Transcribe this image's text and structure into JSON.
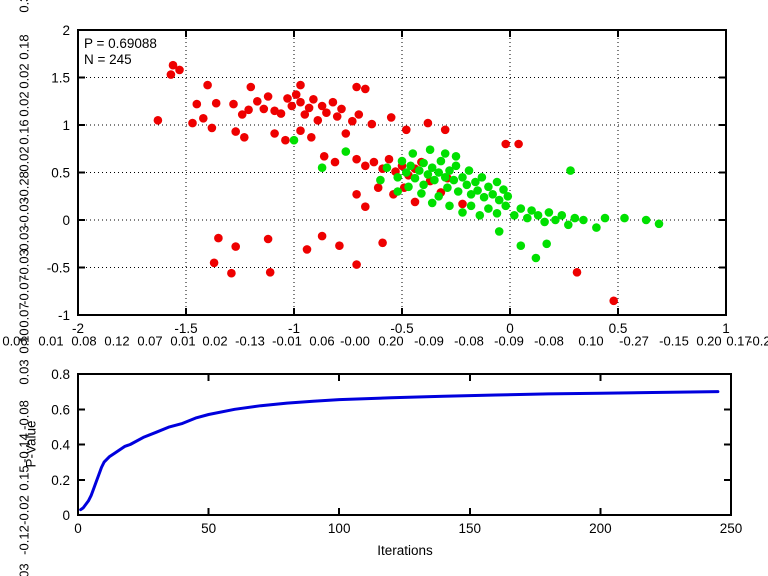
{
  "annotation": {
    "p": "P = 0.69088",
    "n": "N = 245"
  },
  "colors": {
    "red": "#ee0000",
    "green": "#00e000",
    "blue": "#0000dd",
    "axis": "#000000"
  },
  "edge_numbers": {
    "left": [
      "0.30",
      "0.18",
      "0.02",
      "0.02",
      "0.16",
      "0.02",
      "-0.28",
      "-0.03",
      "0.03",
      "-0.03",
      "-0.07",
      "0.07",
      "0.10",
      "0.03",
      "-0.08",
      "-0.14",
      "0.15",
      "-0.02",
      "-0.12",
      "0.03"
    ],
    "bottom": [
      "0.06",
      "0.01",
      "0.08",
      "0.12",
      "0.07",
      "0.01",
      "0.02",
      "-0.13",
      "-0.01",
      "0.06",
      "-0.00",
      "0.20",
      "-0.09",
      "-0.08",
      "-0.09",
      "-0.08",
      "0.10",
      "-0.27",
      "-0.15",
      "0.20",
      "0.17",
      "-0.20"
    ]
  },
  "chart_data": [
    {
      "type": "scatter",
      "name": "scatter-plot",
      "title": "",
      "xlabel": "",
      "ylabel": "",
      "xlim": [
        -2,
        1
      ],
      "ylim": [
        -1,
        2
      ],
      "xtick_labels": [
        "-2",
        "-1.5",
        "-1",
        "-0.5",
        "0",
        "0.5",
        "1"
      ],
      "ytick_labels": [
        "-1",
        "-0.5",
        "0",
        "0.5",
        "1",
        "1.5",
        "2"
      ],
      "grid": true,
      "legend": "none",
      "annotations": [
        "P = 0.69088",
        "N = 245"
      ],
      "series": [
        {
          "name": "red-class",
          "color": "#ee0000",
          "points": [
            [
              -1.56,
              1.63
            ],
            [
              -1.53,
              1.58
            ],
            [
              -1.57,
              1.53
            ],
            [
              -1.63,
              1.05
            ],
            [
              -1.4,
              1.42
            ],
            [
              -1.2,
              1.4
            ],
            [
              -0.97,
              1.42
            ],
            [
              -0.71,
              1.4
            ],
            [
              -0.67,
              1.38
            ],
            [
              -1.45,
              1.22
            ],
            [
              -1.36,
              1.23
            ],
            [
              -1.42,
              1.07
            ],
            [
              -1.47,
              1.02
            ],
            [
              -1.38,
              0.97
            ],
            [
              -1.28,
              1.22
            ],
            [
              -1.24,
              1.11
            ],
            [
              -1.21,
              1.16
            ],
            [
              -1.17,
              1.25
            ],
            [
              -1.14,
              1.17
            ],
            [
              -1.12,
              1.3
            ],
            [
              -1.09,
              1.15
            ],
            [
              -1.06,
              1.12
            ],
            [
              -1.03,
              1.28
            ],
            [
              -1.01,
              1.2
            ],
            [
              -0.99,
              1.32
            ],
            [
              -0.97,
              1.24
            ],
            [
              -0.95,
              1.11
            ],
            [
              -0.93,
              1.18
            ],
            [
              -0.91,
              1.27
            ],
            [
              -0.89,
              1.05
            ],
            [
              -0.87,
              1.2
            ],
            [
              -0.85,
              1.13
            ],
            [
              -0.82,
              1.24
            ],
            [
              -0.8,
              1.09
            ],
            [
              -0.78,
              1.17
            ],
            [
              -0.73,
              1.04
            ],
            [
              -0.7,
              1.11
            ],
            [
              -0.64,
              1.01
            ],
            [
              -0.55,
              1.08
            ],
            [
              -0.48,
              0.95
            ],
            [
              -0.38,
              1.02
            ],
            [
              -0.3,
              0.95
            ],
            [
              -1.27,
              0.93
            ],
            [
              -1.23,
              0.87
            ],
            [
              -1.09,
              0.91
            ],
            [
              -1.04,
              0.84
            ],
            [
              -0.97,
              0.94
            ],
            [
              -0.92,
              0.87
            ],
            [
              -0.76,
              0.91
            ],
            [
              -0.86,
              0.67
            ],
            [
              -0.81,
              0.61
            ],
            [
              -0.71,
              0.64
            ],
            [
              -0.67,
              0.57
            ],
            [
              -0.63,
              0.61
            ],
            [
              -0.59,
              0.54
            ],
            [
              -0.56,
              0.64
            ],
            [
              -0.53,
              0.51
            ],
            [
              -0.5,
              0.57
            ],
            [
              -0.47,
              0.47
            ],
            [
              -0.44,
              0.54
            ],
            [
              -0.41,
              0.61
            ],
            [
              -0.61,
              0.34
            ],
            [
              -0.54,
              0.27
            ],
            [
              -0.49,
              0.34
            ],
            [
              -0.44,
              0.19
            ],
            [
              -0.37,
              0.41
            ],
            [
              -0.32,
              0.29
            ],
            [
              -0.29,
              0.44
            ],
            [
              -0.67,
              0.14
            ],
            [
              -0.71,
              0.27
            ],
            [
              -0.22,
              0.17
            ],
            [
              -1.35,
              -0.19
            ],
            [
              -1.37,
              -0.45
            ],
            [
              -1.27,
              -0.28
            ],
            [
              -1.29,
              -0.56
            ],
            [
              -1.12,
              -0.2
            ],
            [
              -1.11,
              -0.55
            ],
            [
              -0.94,
              -0.31
            ],
            [
              -0.87,
              -0.17
            ],
            [
              -0.79,
              -0.27
            ],
            [
              -0.71,
              -0.47
            ],
            [
              -0.59,
              -0.24
            ],
            [
              -0.02,
              0.8
            ],
            [
              0.04,
              0.8
            ],
            [
              0.31,
              -0.55
            ],
            [
              0.48,
              -0.85
            ]
          ]
        },
        {
          "name": "green-class",
          "color": "#00e000",
          "points": [
            [
              -1.0,
              0.84
            ],
            [
              -0.87,
              0.55
            ],
            [
              -0.76,
              0.72
            ],
            [
              -0.6,
              0.42
            ],
            [
              -0.57,
              0.55
            ],
            [
              -0.52,
              0.45
            ],
            [
              -0.5,
              0.62
            ],
            [
              -0.48,
              0.5
            ],
            [
              -0.46,
              0.57
            ],
            [
              -0.44,
              0.44
            ],
            [
              -0.42,
              0.52
            ],
            [
              -0.4,
              0.6
            ],
            [
              -0.4,
              0.37
            ],
            [
              -0.38,
              0.48
            ],
            [
              -0.37,
              0.74
            ],
            [
              -0.36,
              0.55
            ],
            [
              -0.35,
              0.42
            ],
            [
              -0.33,
              0.5
            ],
            [
              -0.32,
              0.62
            ],
            [
              -0.3,
              0.7
            ],
            [
              -0.3,
              0.45
            ],
            [
              -0.29,
              0.34
            ],
            [
              -0.28,
              0.52
            ],
            [
              -0.26,
              0.42
            ],
            [
              -0.25,
              0.67
            ],
            [
              -0.25,
              0.57
            ],
            [
              -0.24,
              0.3
            ],
            [
              -0.22,
              0.45
            ],
            [
              -0.2,
              0.37
            ],
            [
              -0.19,
              0.52
            ],
            [
              -0.18,
              0.27
            ],
            [
              -0.16,
              0.4
            ],
            [
              -0.15,
              0.31
            ],
            [
              -0.13,
              0.45
            ],
            [
              -0.12,
              0.24
            ],
            [
              -0.1,
              0.35
            ],
            [
              -0.08,
              0.27
            ],
            [
              -0.06,
              0.4
            ],
            [
              -0.05,
              0.21
            ],
            [
              -0.03,
              0.32
            ],
            [
              -0.01,
              0.25
            ],
            [
              -0.45,
              0.7
            ],
            [
              -0.52,
              0.3
            ],
            [
              -0.47,
              0.35
            ],
            [
              -0.41,
              0.28
            ],
            [
              -0.36,
              0.18
            ],
            [
              -0.33,
              0.25
            ],
            [
              -0.28,
              0.15
            ],
            [
              -0.22,
              0.08
            ],
            [
              -0.18,
              0.15
            ],
            [
              -0.14,
              0.05
            ],
            [
              -0.1,
              0.12
            ],
            [
              -0.06,
              0.07
            ],
            [
              -0.02,
              0.15
            ],
            [
              0.02,
              0.05
            ],
            [
              0.05,
              0.12
            ],
            [
              0.08,
              0.02
            ],
            [
              0.1,
              0.1
            ],
            [
              0.13,
              0.05
            ],
            [
              0.16,
              -0.02
            ],
            [
              0.18,
              0.08
            ],
            [
              0.21,
              0.0
            ],
            [
              0.24,
              0.05
            ],
            [
              0.27,
              -0.05
            ],
            [
              0.3,
              0.02
            ],
            [
              0.28,
              0.52
            ],
            [
              0.34,
              0.0
            ],
            [
              0.4,
              -0.08
            ],
            [
              0.44,
              0.02
            ],
            [
              0.53,
              0.02
            ],
            [
              0.63,
              0.0
            ],
            [
              0.69,
              -0.04
            ],
            [
              0.05,
              -0.27
            ],
            [
              0.17,
              -0.25
            ],
            [
              -0.05,
              -0.12
            ],
            [
              0.12,
              -0.4
            ]
          ]
        }
      ]
    },
    {
      "type": "line",
      "name": "pvalue-plot",
      "title": "",
      "xlabel": "Iterations",
      "ylabel": "P-Value",
      "xlim": [
        0,
        250
      ],
      "ylim": [
        0,
        0.8
      ],
      "xtick_labels": [
        "0",
        "50",
        "100",
        "150",
        "200",
        "250"
      ],
      "ytick_labels": [
        "0",
        "0.2",
        "0.4",
        "0.6",
        "0.8"
      ],
      "grid": false,
      "legend": "none",
      "series": [
        {
          "name": "p-value-curve",
          "color": "#0000dd",
          "x": [
            1,
            2,
            3,
            4,
            5,
            6,
            7,
            8,
            9,
            10,
            12,
            14,
            16,
            18,
            20,
            25,
            30,
            35,
            40,
            45,
            50,
            60,
            70,
            80,
            90,
            100,
            120,
            140,
            160,
            180,
            200,
            220,
            245
          ],
          "y": [
            0.03,
            0.04,
            0.06,
            0.08,
            0.11,
            0.15,
            0.19,
            0.23,
            0.27,
            0.3,
            0.33,
            0.35,
            0.37,
            0.39,
            0.4,
            0.44,
            0.47,
            0.5,
            0.52,
            0.55,
            0.57,
            0.6,
            0.62,
            0.635,
            0.645,
            0.655,
            0.665,
            0.674,
            0.681,
            0.687,
            0.691,
            0.695,
            0.7
          ]
        }
      ]
    }
  ]
}
